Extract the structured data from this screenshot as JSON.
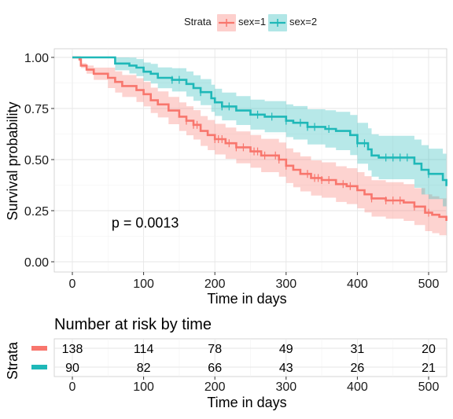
{
  "colors": {
    "sex1": "#F8766D",
    "sex2": "#1FB8B8",
    "sex1_band": "#F8766D",
    "sex2_band": "#1FB8B8",
    "grid": "#E6E6E6",
    "axis_text": "#1A1A1A"
  },
  "legend": {
    "title": "Strata",
    "items": [
      "sex=1",
      "sex=2"
    ]
  },
  "chart_data": [
    {
      "type": "line",
      "subtype": "kaplan-meier",
      "xlabel": "Time in days",
      "ylabel": "Survival probability",
      "xlim": [
        -25,
        525
      ],
      "ylim": [
        -0.02,
        1.04
      ],
      "x_ticks": [
        0,
        100,
        200,
        300,
        400,
        500
      ],
      "y_ticks": [
        0.0,
        0.25,
        0.5,
        0.75,
        1.0
      ],
      "y_tick_labels": [
        "0.00",
        "0.25",
        "0.50",
        "0.75",
        "1.00"
      ],
      "x_tick_labels": [
        "0",
        "100",
        "200",
        "300",
        "400",
        "500"
      ],
      "grid": true,
      "legend_position": "top",
      "annotation": "p = 0.0013",
      "annotation_pos": [
        55,
        0.19
      ],
      "series": [
        {
          "name": "sex=1",
          "steps": [
            [
              0,
              1.0
            ],
            [
              10,
              0.99
            ],
            [
              12,
              0.96
            ],
            [
              20,
              0.94
            ],
            [
              30,
              0.92
            ],
            [
              50,
              0.9
            ],
            [
              60,
              0.88
            ],
            [
              70,
              0.86
            ],
            [
              90,
              0.84
            ],
            [
              100,
              0.82
            ],
            [
              110,
              0.79
            ],
            [
              120,
              0.77
            ],
            [
              135,
              0.74
            ],
            [
              150,
              0.71
            ],
            [
              160,
              0.69
            ],
            [
              170,
              0.67
            ],
            [
              180,
              0.64
            ],
            [
              190,
              0.62
            ],
            [
              200,
              0.6
            ],
            [
              215,
              0.58
            ],
            [
              230,
              0.56
            ],
            [
              250,
              0.54
            ],
            [
              265,
              0.52
            ],
            [
              290,
              0.5
            ],
            [
              300,
              0.47
            ],
            [
              310,
              0.45
            ],
            [
              320,
              0.43
            ],
            [
              335,
              0.41
            ],
            [
              350,
              0.4
            ],
            [
              370,
              0.38
            ],
            [
              385,
              0.37
            ],
            [
              400,
              0.35
            ],
            [
              410,
              0.33
            ],
            [
              420,
              0.31
            ],
            [
              440,
              0.3
            ],
            [
              465,
              0.29
            ],
            [
              480,
              0.27
            ],
            [
              495,
              0.24
            ],
            [
              505,
              0.23
            ],
            [
              515,
              0.22
            ],
            [
              525,
              0.2
            ]
          ],
          "band_width": [
            [
              0,
              0.0
            ],
            [
              50,
              0.05
            ],
            [
              150,
              0.07
            ],
            [
              300,
              0.085
            ],
            [
              450,
              0.09
            ],
            [
              525,
              0.09
            ]
          ],
          "censor_times": [
            160,
            170,
            175,
            200,
            205,
            210,
            220,
            230,
            240,
            255,
            260,
            270,
            285,
            290,
            300,
            330,
            340,
            345,
            350,
            360,
            380,
            390,
            420,
            440,
            450,
            460,
            480,
            500
          ]
        },
        {
          "name": "sex=2",
          "steps": [
            [
              0,
              1.0
            ],
            [
              60,
              0.97
            ],
            [
              80,
              0.96
            ],
            [
              90,
              0.95
            ],
            [
              100,
              0.93
            ],
            [
              110,
              0.92
            ],
            [
              120,
              0.9
            ],
            [
              140,
              0.89
            ],
            [
              160,
              0.87
            ],
            [
              170,
              0.85
            ],
            [
              180,
              0.83
            ],
            [
              195,
              0.8
            ],
            [
              200,
              0.78
            ],
            [
              210,
              0.76
            ],
            [
              230,
              0.74
            ],
            [
              250,
              0.72
            ],
            [
              270,
              0.71
            ],
            [
              300,
              0.69
            ],
            [
              310,
              0.68
            ],
            [
              330,
              0.66
            ],
            [
              355,
              0.65
            ],
            [
              370,
              0.64
            ],
            [
              390,
              0.62
            ],
            [
              400,
              0.58
            ],
            [
              415,
              0.55
            ],
            [
              420,
              0.52
            ],
            [
              430,
              0.51
            ],
            [
              480,
              0.48
            ],
            [
              490,
              0.45
            ],
            [
              500,
              0.43
            ],
            [
              520,
              0.4
            ],
            [
              525,
              0.37
            ]
          ],
          "band_width": [
            [
              0,
              0.0
            ],
            [
              50,
              0.03
            ],
            [
              150,
              0.06
            ],
            [
              300,
              0.08
            ],
            [
              450,
              0.11
            ],
            [
              525,
              0.13
            ]
          ],
          "censor_times": [
            140,
            150,
            180,
            210,
            220,
            260,
            280,
            300,
            320,
            330,
            340,
            360,
            400,
            410,
            440,
            450,
            460,
            470,
            500
          ]
        }
      ]
    },
    {
      "type": "table",
      "title": "Number at risk by time",
      "xlabel": "Time in days",
      "ylabel": "Strata",
      "x_ticks": [
        0,
        100,
        200,
        300,
        400,
        500
      ],
      "x_tick_labels": [
        "0",
        "100",
        "200",
        "300",
        "400",
        "500"
      ],
      "rows": [
        {
          "name": "sex=1",
          "values": [
            "138",
            "114",
            "78",
            "49",
            "31",
            "20"
          ]
        },
        {
          "name": "sex=2",
          "values": [
            "90",
            "82",
            "66",
            "43",
            "26",
            "21"
          ]
        }
      ]
    }
  ]
}
